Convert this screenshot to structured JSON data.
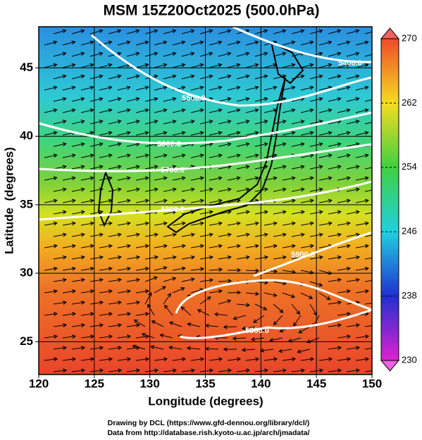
{
  "title": "MSM 15Z20Oct2025 (500.0hPa)",
  "map": {
    "x_label": "Longitude (degrees)",
    "y_label": "Latitude  (degrees)",
    "xlim": [
      120,
      150
    ],
    "ylim": [
      22.6,
      48
    ],
    "xticks": [
      120,
      125,
      130,
      135,
      140,
      145,
      150
    ],
    "yticks": [
      25,
      30,
      35,
      40,
      45
    ]
  },
  "colorbar": {
    "lim": [
      230,
      270
    ],
    "ticks": [
      230,
      238,
      246,
      254,
      262,
      270
    ]
  },
  "contour_labels": [
    "5400.0",
    "5500.0",
    "5600.0",
    "5700.0",
    "5800.0",
    "5900.0",
    "5900.0"
  ],
  "footer": [
    "Drawing by DCL (https://www.gfd-dennou.org/library/dcl/)",
    "Data from http://database.rish.kyoto-u.ac.jp/arch/jmadata/"
  ]
}
